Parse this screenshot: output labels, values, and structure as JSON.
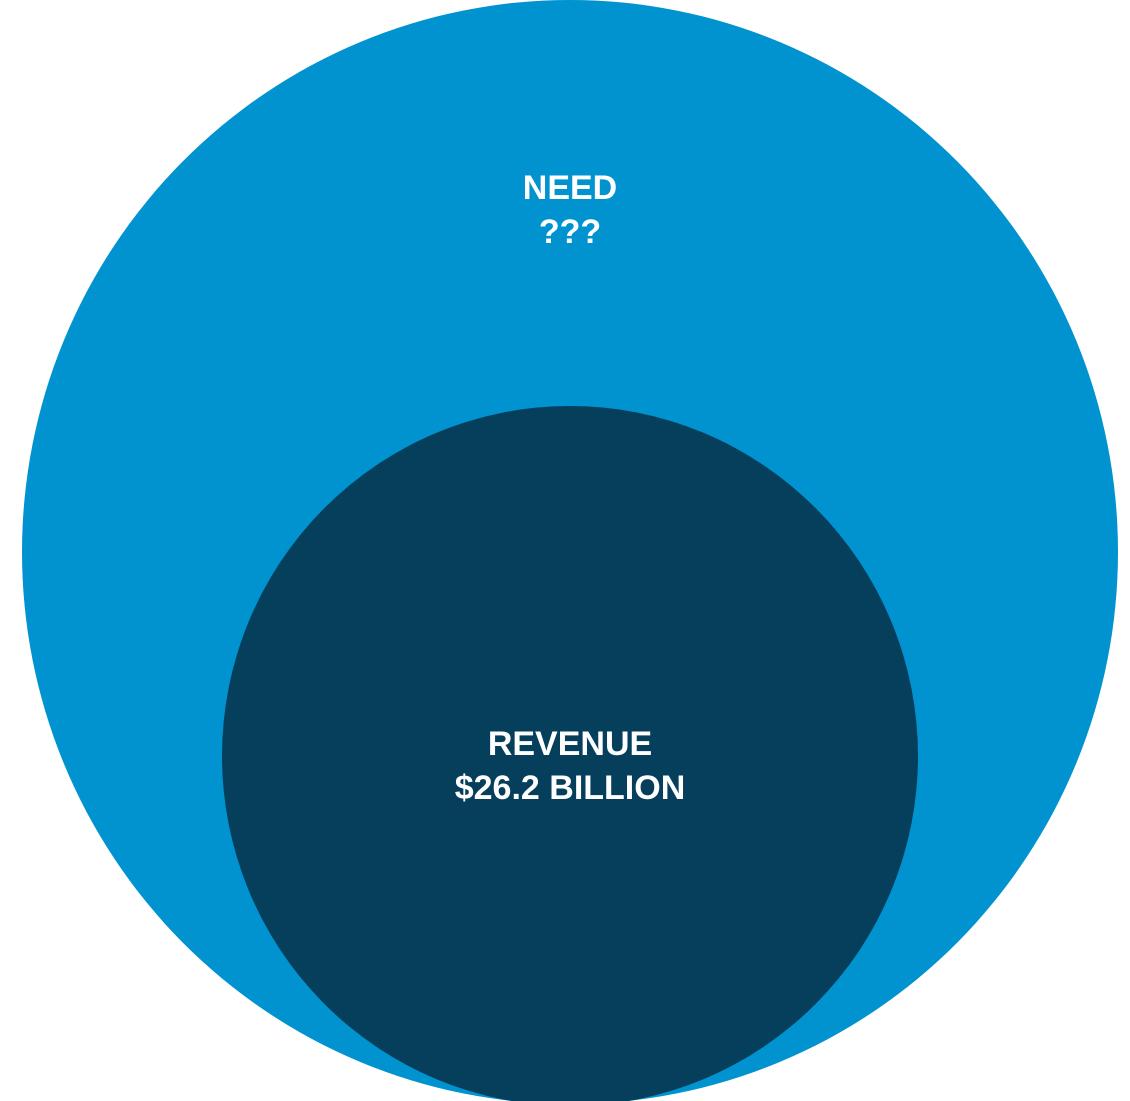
{
  "outer_circle": {
    "title": "NEED",
    "value": "???",
    "color": "#0093d0"
  },
  "inner_circle": {
    "title": "REVENUE",
    "value": "$26.2 BILLION",
    "color": "#053f5c"
  },
  "text_color": "#ffffff"
}
